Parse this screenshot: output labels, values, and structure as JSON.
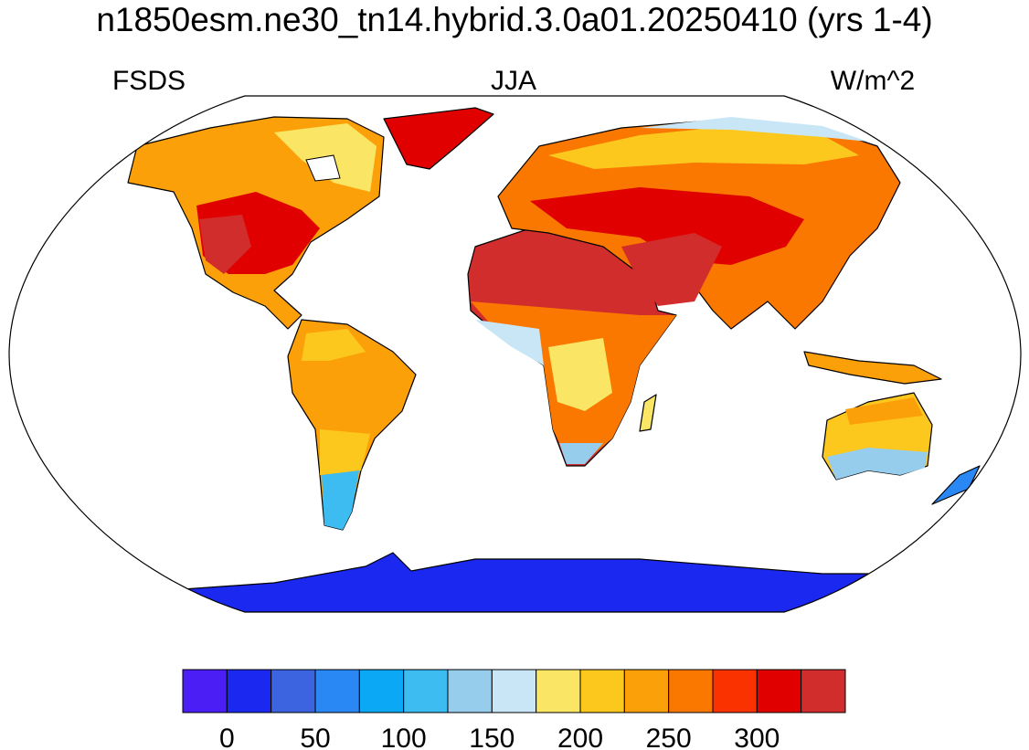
{
  "title": "n1850esm.ne30_tn14.hybrid.3.0a01.20250410 (yrs 1-4)",
  "left_label": "FSDS",
  "center_label": "JJA",
  "right_label": "W/m^2",
  "colorbar": {
    "colors": [
      "#4a1ef5",
      "#1a28f0",
      "#3c64e0",
      "#2a88f5",
      "#0aa8f5",
      "#3cbcf0",
      "#96cdec",
      "#c8e6f5",
      "#fae664",
      "#fcc81e",
      "#fca00a",
      "#fa7800",
      "#fa3200",
      "#e10000",
      "#d22d2d"
    ],
    "xlim": [
      -25,
      350
    ],
    "ticks": [
      0,
      50,
      100,
      150,
      200,
      250,
      300
    ]
  }
}
